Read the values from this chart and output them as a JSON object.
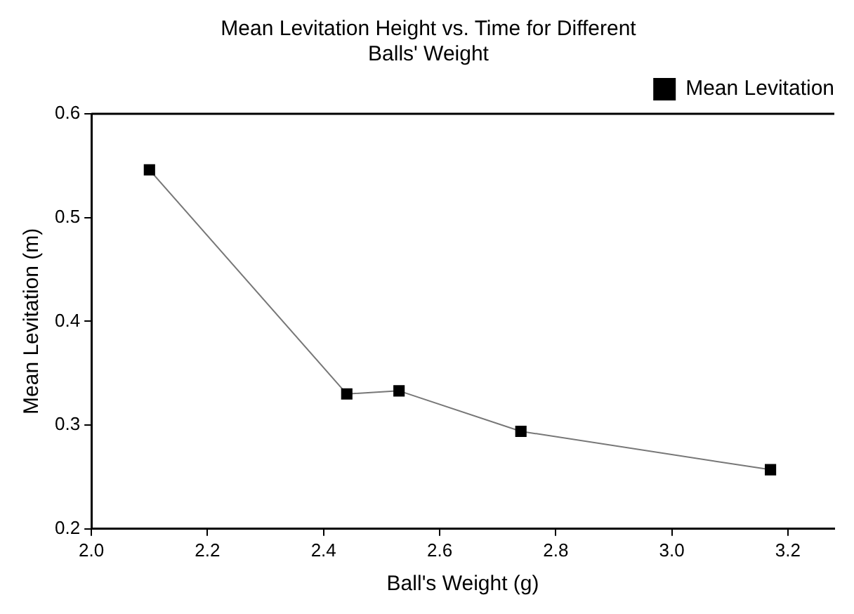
{
  "chart_data": {
    "type": "line",
    "title": "Mean Levitation Height vs. Time for Different Balls' Weight",
    "xlabel": "Ball's Weight (g)",
    "ylabel": "Mean Levitation (m)",
    "x": [
      2.1,
      2.44,
      2.53,
      2.74,
      3.17
    ],
    "series": [
      {
        "name": "Mean Levitation",
        "color": "#000000",
        "values": [
          0.546,
          0.33,
          0.333,
          0.294,
          0.257
        ]
      }
    ],
    "xlim": [
      2.0,
      3.28
    ],
    "xticks": [
      {
        "value": 2,
        "label": "2.0"
      },
      2.2,
      2.4,
      2.6,
      2.8,
      {
        "value": 3,
        "label": "3.0"
      },
      3.2
    ],
    "ylim": [
      0.2,
      0.6
    ],
    "yticks": [
      0.2,
      0.3,
      0.4,
      0.5,
      0.6
    ],
    "grid": false,
    "legend": "top right",
    "marker": "square",
    "line_style": "solid"
  }
}
